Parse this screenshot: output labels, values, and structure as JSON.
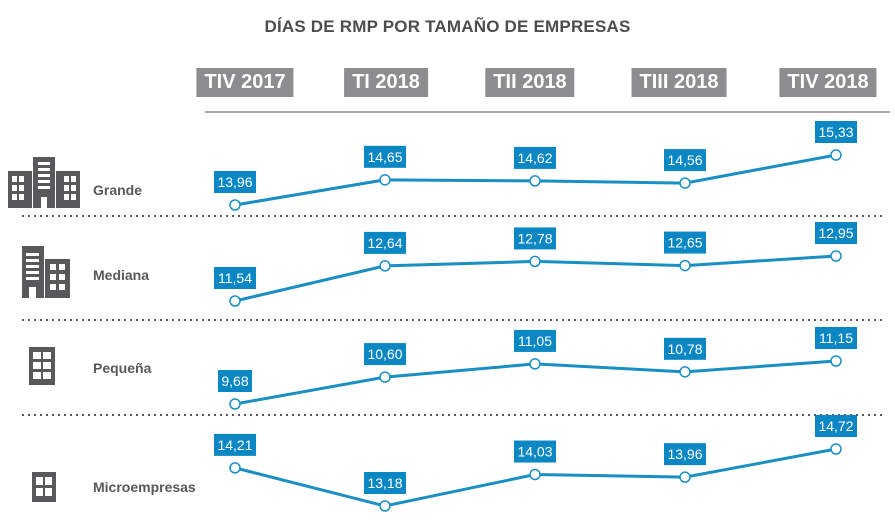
{
  "chart_data": {
    "type": "line",
    "title": "DÍAS DE RMP POR TAMAÑO DE EMPRESAS",
    "categories": [
      "TIV 2017",
      "TI 2018",
      "TII 2018",
      "TIII 2018",
      "TIV 2018"
    ],
    "series": [
      {
        "name": "Grande",
        "icon": "large-building-icon",
        "values": [
          13.96,
          14.65,
          14.62,
          14.56,
          15.33
        ],
        "labels": [
          "13,96",
          "14,65",
          "14,62",
          "14,56",
          "15,33"
        ]
      },
      {
        "name": "Mediana",
        "icon": "medium-building-icon",
        "values": [
          11.54,
          12.64,
          12.78,
          12.65,
          12.95
        ],
        "labels": [
          "11,54",
          "12,64",
          "12,78",
          "12,65",
          "12,95"
        ]
      },
      {
        "name": "Pequeña",
        "icon": "small-building-icon",
        "values": [
          9.68,
          10.6,
          11.05,
          10.78,
          11.15
        ],
        "labels": [
          "9,68",
          "10,60",
          "11,05",
          "10,78",
          "11,15"
        ]
      },
      {
        "name": "Microempresas",
        "icon": "micro-building-icon",
        "values": [
          14.21,
          13.18,
          14.03,
          13.96,
          14.72
        ],
        "labels": [
          "14,21",
          "13,18",
          "14,03",
          "13,96",
          "14,72"
        ]
      }
    ],
    "colors": {
      "line": "#1a8fc4",
      "label_bg": "#0b87c4",
      "header_bg": "#8b8d8f",
      "icon": "#58595b",
      "text": "#58595b"
    },
    "grid": false
  }
}
